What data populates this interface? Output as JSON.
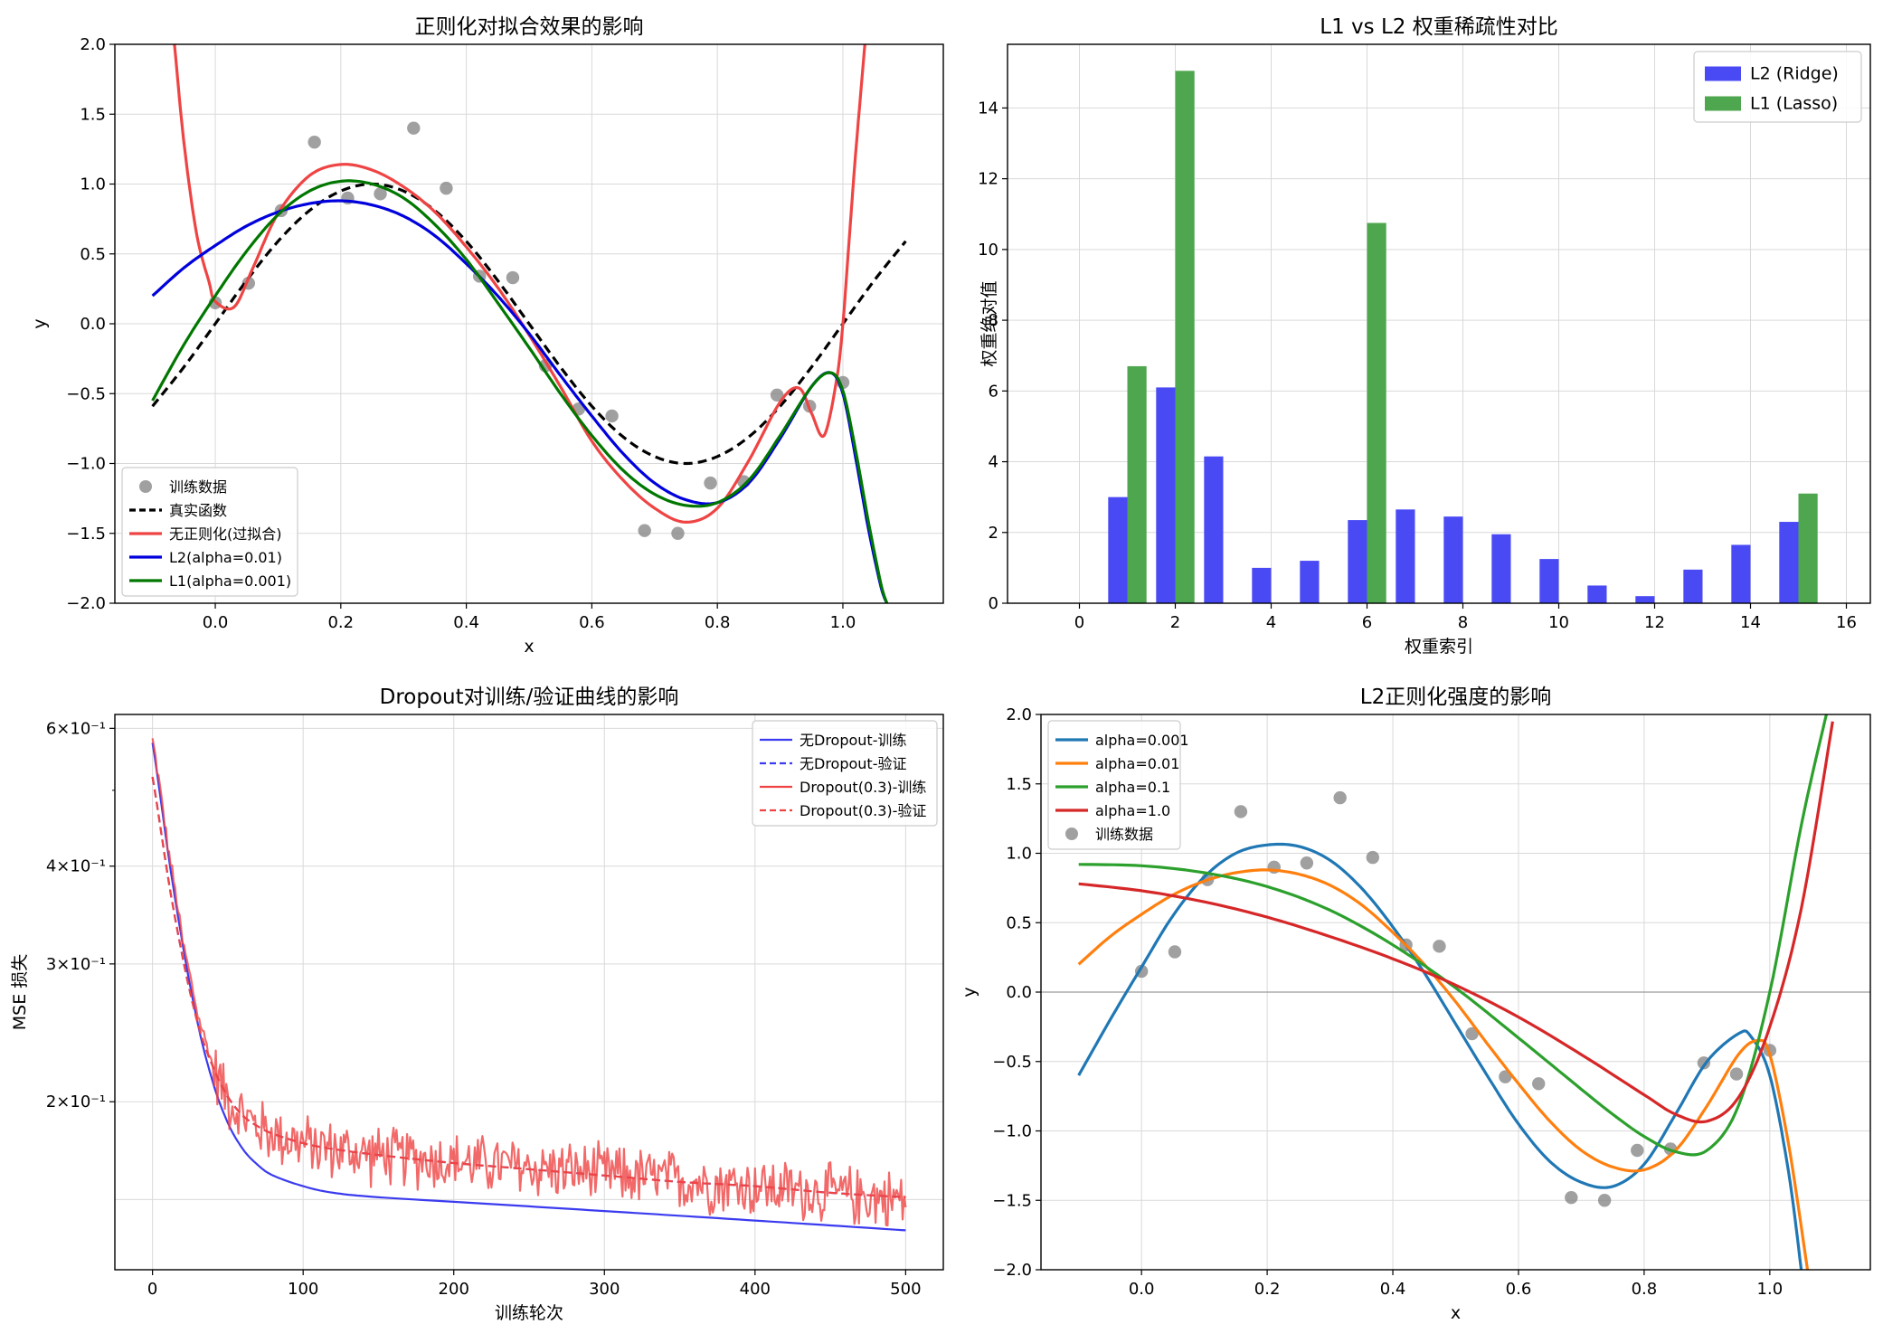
{
  "chart_data": [
    {
      "type": "line",
      "title": "正则化对拟合效果的影响",
      "xlabel": "x",
      "ylabel": "y",
      "xlim": [
        -0.16,
        1.16
      ],
      "ylim": [
        -2.0,
        2.0
      ],
      "xticks": [
        0.0,
        0.2,
        0.4,
        0.6,
        0.8,
        1.0
      ],
      "xtick_labels": [
        "0.0",
        "0.2",
        "0.4",
        "0.6",
        "0.8",
        "1.0"
      ],
      "yticks": [
        2.0,
        1.5,
        1.0,
        0.5,
        0.0,
        -0.5,
        -1.0,
        -1.5,
        -2.0
      ],
      "ytick_labels": [
        "2.0",
        "1.5",
        "1.0",
        "0.5",
        "0.0",
        "−0.5",
        "−1.0",
        "−1.5",
        "−2.0"
      ],
      "grid": true,
      "legend_position": "lower-left",
      "scatter": {
        "name": "训练数据",
        "color": "#808080",
        "x": [
          0.0,
          0.053,
          0.105,
          0.158,
          0.211,
          0.263,
          0.316,
          0.368,
          0.421,
          0.474,
          0.526,
          0.579,
          0.632,
          0.684,
          0.737,
          0.789,
          0.842,
          0.895,
          0.947,
          1.0
        ],
        "y": [
          0.15,
          0.29,
          0.81,
          1.3,
          0.9,
          0.93,
          1.4,
          0.97,
          0.34,
          0.33,
          -0.3,
          -0.61,
          -0.66,
          -1.48,
          -1.5,
          -1.14,
          -1.13,
          -0.51,
          -0.59,
          -0.42
        ]
      },
      "series": [
        {
          "name": "真实函数",
          "color": "#000000",
          "style": "dashed",
          "x": [
            -0.1,
            -0.05,
            0.0,
            0.05,
            0.1,
            0.15,
            0.2,
            0.25,
            0.3,
            0.35,
            0.4,
            0.45,
            0.5,
            0.55,
            0.6,
            0.65,
            0.7,
            0.75,
            0.8,
            0.85,
            0.9,
            0.95,
            1.0,
            1.05,
            1.1
          ],
          "y": [
            -0.59,
            -0.31,
            0.0,
            0.31,
            0.59,
            0.81,
            0.95,
            1.0,
            0.95,
            0.81,
            0.59,
            0.31,
            0.0,
            -0.31,
            -0.59,
            -0.81,
            -0.95,
            -1.0,
            -0.95,
            -0.81,
            -0.59,
            -0.31,
            0.0,
            0.31,
            0.59
          ]
        },
        {
          "name": "无正则化(过拟合)",
          "color": "#ef4444",
          "style": "solid",
          "x": [
            -0.065,
            -0.05,
            -0.03,
            -0.01,
            0.0,
            0.03,
            0.06,
            0.1,
            0.15,
            0.2,
            0.25,
            0.3,
            0.35,
            0.4,
            0.45,
            0.5,
            0.55,
            0.6,
            0.65,
            0.7,
            0.75,
            0.8,
            0.85,
            0.9,
            0.93,
            0.95,
            0.97,
            0.99,
            1.0,
            1.01,
            1.02,
            1.035
          ],
          "y": [
            2.0,
            1.3,
            0.65,
            0.3,
            0.16,
            0.12,
            0.4,
            0.79,
            1.06,
            1.14,
            1.1,
            0.98,
            0.8,
            0.55,
            0.26,
            -0.08,
            -0.45,
            -0.84,
            -1.12,
            -1.32,
            -1.42,
            -1.32,
            -0.98,
            -0.56,
            -0.46,
            -0.64,
            -0.8,
            -0.4,
            0.0,
            0.6,
            1.2,
            2.0
          ]
        },
        {
          "name": "L2(alpha=0.01)",
          "color": "#0000dd",
          "style": "solid",
          "x": [
            -0.1,
            -0.05,
            0.0,
            0.05,
            0.1,
            0.15,
            0.2,
            0.25,
            0.3,
            0.35,
            0.4,
            0.45,
            0.5,
            0.55,
            0.6,
            0.65,
            0.7,
            0.75,
            0.8,
            0.85,
            0.9,
            0.95,
            0.98,
            1.0,
            1.02,
            1.04,
            1.06,
            1.07
          ],
          "y": [
            0.2,
            0.4,
            0.56,
            0.7,
            0.8,
            0.86,
            0.88,
            0.85,
            0.77,
            0.63,
            0.43,
            0.2,
            -0.07,
            -0.37,
            -0.66,
            -0.93,
            -1.14,
            -1.26,
            -1.28,
            -1.14,
            -0.82,
            -0.45,
            -0.35,
            -0.5,
            -0.95,
            -1.45,
            -1.87,
            -2.0
          ]
        },
        {
          "name": "L1(alpha=0.001)",
          "color": "#007700",
          "style": "solid",
          "x": [
            -0.1,
            -0.05,
            0.0,
            0.05,
            0.1,
            0.15,
            0.2,
            0.25,
            0.3,
            0.35,
            0.4,
            0.45,
            0.5,
            0.55,
            0.6,
            0.65,
            0.7,
            0.75,
            0.8,
            0.85,
            0.9,
            0.95,
            0.98,
            1.0,
            1.02,
            1.04,
            1.06,
            1.07
          ],
          "y": [
            -0.55,
            -0.15,
            0.2,
            0.52,
            0.78,
            0.95,
            1.02,
            1.0,
            0.9,
            0.71,
            0.46,
            0.15,
            -0.17,
            -0.5,
            -0.8,
            -1.05,
            -1.22,
            -1.3,
            -1.28,
            -1.12,
            -0.8,
            -0.45,
            -0.35,
            -0.48,
            -0.9,
            -1.4,
            -1.85,
            -2.0
          ]
        }
      ]
    },
    {
      "type": "bar",
      "title": "L1 vs L2 权重稀疏性对比",
      "xlabel": "权重索引",
      "ylabel": "权重绝对值",
      "xlim": [
        -1.5,
        16.5
      ],
      "ylim": [
        0,
        15.8
      ],
      "xticks": [
        0,
        2,
        4,
        6,
        8,
        10,
        12,
        14,
        16
      ],
      "xtick_labels": [
        "0",
        "2",
        "4",
        "6",
        "8",
        "10",
        "12",
        "14",
        "16"
      ],
      "yticks": [
        0,
        2,
        4,
        6,
        8,
        10,
        12,
        14
      ],
      "ytick_labels": [
        "0",
        "2",
        "4",
        "6",
        "8",
        "10",
        "12",
        "14"
      ],
      "grid": true,
      "legend_position": "upper-right",
      "categories": [
        0,
        1,
        2,
        3,
        4,
        5,
        6,
        7,
        8,
        9,
        10,
        11,
        12,
        13,
        14,
        15
      ],
      "series": [
        {
          "name": "L2 (Ridge)",
          "color": "#4a4af5",
          "values": [
            0.0,
            3.0,
            6.1,
            4.15,
            1.0,
            1.2,
            2.35,
            2.65,
            2.45,
            1.95,
            1.25,
            0.5,
            0.2,
            0.95,
            1.65,
            2.3
          ]
        },
        {
          "name": "L1 (Lasso)",
          "color": "#4ea64e",
          "values": [
            0.0,
            6.7,
            15.05,
            0.0,
            0.0,
            0.0,
            10.75,
            0.0,
            0.0,
            0.0,
            0.0,
            0.0,
            0.0,
            0.0,
            0.0,
            3.1
          ]
        }
      ]
    },
    {
      "type": "line",
      "title": "Dropout对训练/验证曲线的影响",
      "xlabel": "训练轮次",
      "ylabel": "MSE 损失",
      "yscale": "log",
      "xlim": [
        -25,
        525
      ],
      "ylim": [
        0.122,
        0.625
      ],
      "xticks": [
        0,
        100,
        200,
        300,
        400,
        500
      ],
      "xtick_labels": [
        "0",
        "100",
        "200",
        "300",
        "400",
        "500"
      ],
      "yticks": [
        0.6,
        0.4,
        0.3,
        0.2
      ],
      "ytick_labels": [
        "6×10⁻¹",
        "4×10⁻¹",
        "3×10⁻¹",
        "2×10⁻¹"
      ],
      "grid": true,
      "legend_position": "upper-right",
      "series": [
        {
          "name": "无Dropout-训练",
          "color": "#3b3bf0",
          "style": "solid",
          "x": [
            0,
            10,
            20,
            30,
            40,
            50,
            60,
            70,
            80,
            100,
            120,
            150,
            200,
            250,
            300,
            350,
            400,
            450,
            500
          ],
          "y": [
            0.575,
            0.42,
            0.318,
            0.252,
            0.212,
            0.188,
            0.174,
            0.166,
            0.161,
            0.156,
            0.153,
            0.151,
            0.149,
            0.147,
            0.145,
            0.143,
            0.141,
            0.139,
            0.137
          ]
        },
        {
          "name": "无Dropout-验证",
          "color": "#3b3bf0",
          "style": "dashed",
          "x": [
            0,
            10,
            20,
            30,
            40,
            50,
            60,
            70,
            80,
            100,
            120,
            150,
            200,
            250,
            300,
            350,
            400,
            450,
            500
          ],
          "y": [
            0.52,
            0.39,
            0.306,
            0.252,
            0.222,
            0.203,
            0.192,
            0.186,
            0.182,
            0.177,
            0.174,
            0.171,
            0.167,
            0.164,
            0.161,
            0.158,
            0.156,
            0.153,
            0.151
          ]
        },
        {
          "name": "Dropout(0.3)-训练",
          "color": "#ef4444",
          "style": "solid",
          "noisy": true,
          "x": [
            0,
            10,
            20,
            30,
            40,
            50,
            60,
            70,
            80,
            100,
            120,
            150,
            200,
            250,
            300,
            350,
            400,
            450,
            500
          ],
          "y": [
            0.58,
            0.425,
            0.32,
            0.258,
            0.222,
            0.202,
            0.192,
            0.186,
            0.182,
            0.177,
            0.174,
            0.171,
            0.168,
            0.165,
            0.162,
            0.159,
            0.156,
            0.153,
            0.15
          ]
        },
        {
          "name": "Dropout(0.3)-验证",
          "color": "#ef4444",
          "style": "dashed",
          "x": [
            0,
            10,
            20,
            30,
            40,
            50,
            60,
            70,
            80,
            100,
            120,
            150,
            200,
            250,
            300,
            350,
            400,
            450,
            500
          ],
          "y": [
            0.52,
            0.39,
            0.306,
            0.252,
            0.222,
            0.203,
            0.192,
            0.186,
            0.182,
            0.177,
            0.174,
            0.171,
            0.167,
            0.164,
            0.161,
            0.158,
            0.156,
            0.153,
            0.151
          ]
        }
      ]
    },
    {
      "type": "line",
      "title": "L2正则化强度的影响",
      "xlabel": "x",
      "ylabel": "y",
      "xlim": [
        -0.16,
        1.16
      ],
      "ylim": [
        -2.0,
        2.0
      ],
      "xticks": [
        0.0,
        0.2,
        0.4,
        0.6,
        0.8,
        1.0
      ],
      "xtick_labels": [
        "0.0",
        "0.2",
        "0.4",
        "0.6",
        "0.8",
        "1.0"
      ],
      "yticks": [
        2.0,
        1.5,
        1.0,
        0.5,
        0.0,
        -0.5,
        -1.0,
        -1.5,
        -2.0
      ],
      "ytick_labels": [
        "2.0",
        "1.5",
        "1.0",
        "0.5",
        "0.0",
        "−0.5",
        "−1.0",
        "−1.5",
        "−2.0"
      ],
      "grid": true,
      "zero_line": true,
      "legend_position": "upper-left",
      "scatter": {
        "name": "训练数据",
        "color": "#808080",
        "x": [
          0.0,
          0.053,
          0.105,
          0.158,
          0.211,
          0.263,
          0.316,
          0.368,
          0.421,
          0.474,
          0.526,
          0.579,
          0.632,
          0.684,
          0.737,
          0.789,
          0.842,
          0.895,
          0.947,
          1.0
        ],
        "y": [
          0.15,
          0.29,
          0.81,
          1.3,
          0.9,
          0.93,
          1.4,
          0.97,
          0.34,
          0.33,
          -0.3,
          -0.61,
          -0.66,
          -1.48,
          -1.5,
          -1.14,
          -1.13,
          -0.51,
          -0.59,
          -0.42
        ]
      },
      "series": [
        {
          "name": "alpha=0.001",
          "color": "#1f77b4",
          "x": [
            -0.1,
            -0.05,
            0.0,
            0.05,
            0.1,
            0.15,
            0.2,
            0.25,
            0.3,
            0.35,
            0.4,
            0.45,
            0.5,
            0.55,
            0.6,
            0.65,
            0.7,
            0.75,
            0.8,
            0.85,
            0.9,
            0.95,
            0.97,
            1.0,
            1.03,
            1.05
          ],
          "y": [
            -0.6,
            -0.2,
            0.18,
            0.55,
            0.83,
            1.0,
            1.06,
            1.05,
            0.95,
            0.75,
            0.47,
            0.14,
            -0.23,
            -0.6,
            -0.95,
            -1.22,
            -1.37,
            -1.4,
            -1.24,
            -0.88,
            -0.5,
            -0.3,
            -0.32,
            -0.6,
            -1.3,
            -2.0
          ]
        },
        {
          "name": "alpha=0.01",
          "color": "#ff7f0e",
          "x": [
            -0.1,
            -0.05,
            0.0,
            0.05,
            0.1,
            0.15,
            0.2,
            0.25,
            0.3,
            0.35,
            0.4,
            0.45,
            0.5,
            0.55,
            0.6,
            0.65,
            0.7,
            0.75,
            0.8,
            0.85,
            0.9,
            0.95,
            0.98,
            1.0,
            1.03,
            1.06
          ],
          "y": [
            0.2,
            0.4,
            0.56,
            0.7,
            0.8,
            0.86,
            0.88,
            0.85,
            0.77,
            0.63,
            0.43,
            0.2,
            -0.07,
            -0.37,
            -0.66,
            -0.93,
            -1.14,
            -1.26,
            -1.28,
            -1.14,
            -0.82,
            -0.45,
            -0.35,
            -0.45,
            -1.1,
            -2.0
          ]
        },
        {
          "name": "alpha=0.1",
          "color": "#2ca02c",
          "x": [
            -0.1,
            0.0,
            0.1,
            0.2,
            0.3,
            0.4,
            0.5,
            0.6,
            0.7,
            0.75,
            0.8,
            0.85,
            0.9,
            0.95,
            1.0,
            1.05,
            1.09
          ],
          "y": [
            0.92,
            0.91,
            0.86,
            0.76,
            0.59,
            0.34,
            0.03,
            -0.33,
            -0.7,
            -0.88,
            -1.04,
            -1.15,
            -1.14,
            -0.82,
            0.0,
            1.2,
            2.0
          ]
        },
        {
          "name": "alpha=1.0",
          "color": "#d62728",
          "x": [
            -0.1,
            0.0,
            0.1,
            0.2,
            0.3,
            0.4,
            0.5,
            0.6,
            0.7,
            0.8,
            0.85,
            0.9,
            0.95,
            1.0,
            1.05,
            1.1
          ],
          "y": [
            0.78,
            0.73,
            0.65,
            0.54,
            0.4,
            0.24,
            0.05,
            -0.18,
            -0.45,
            -0.74,
            -0.88,
            -0.93,
            -0.76,
            -0.25,
            0.6,
            1.95
          ]
        }
      ]
    }
  ]
}
